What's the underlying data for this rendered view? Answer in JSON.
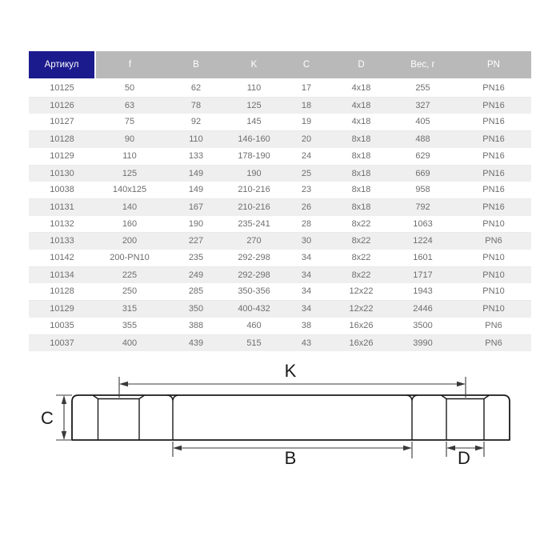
{
  "table": {
    "headers": [
      "Артикул",
      "f",
      "B",
      "K",
      "C",
      "D",
      "Вес, г",
      "PN"
    ],
    "rows": [
      [
        "10125",
        "50",
        "62",
        "110",
        "17",
        "4x18",
        "255",
        "PN16"
      ],
      [
        "10126",
        "63",
        "78",
        "125",
        "18",
        "4x18",
        "327",
        "PN16"
      ],
      [
        "10127",
        "75",
        "92",
        "145",
        "19",
        "4x18",
        "405",
        "PN16"
      ],
      [
        "10128",
        "90",
        "110",
        "146-160",
        "20",
        "8x18",
        "488",
        "PN16"
      ],
      [
        "10129",
        "110",
        "133",
        "178-190",
        "24",
        "8x18",
        "629",
        "PN16"
      ],
      [
        "10130",
        "125",
        "149",
        "190",
        "25",
        "8x18",
        "669",
        "PN16"
      ],
      [
        "10038",
        "140x125",
        "149",
        "210-216",
        "23",
        "8x18",
        "958",
        "PN16"
      ],
      [
        "10131",
        "140",
        "167",
        "210-216",
        "26",
        "8x18",
        "792",
        "PN16"
      ],
      [
        "10132",
        "160",
        "190",
        "235-241",
        "28",
        "8x22",
        "1063",
        "PN10"
      ],
      [
        "10133",
        "200",
        "227",
        "270",
        "30",
        "8x22",
        "1224",
        "PN6"
      ],
      [
        "10142",
        "200-PN10",
        "235",
        "292-298",
        "34",
        "8x22",
        "1601",
        "PN10"
      ],
      [
        "10134",
        "225",
        "249",
        "292-298",
        "34",
        "8x22",
        "1717",
        "PN10"
      ],
      [
        "10128",
        "250",
        "285",
        "350-356",
        "34",
        "12x22",
        "1943",
        "PN10"
      ],
      [
        "10129",
        "315",
        "350",
        "400-432",
        "34",
        "12x22",
        "2446",
        "PN10"
      ],
      [
        "10035",
        "355",
        "388",
        "460",
        "38",
        "16x26",
        "3500",
        "PN6"
      ],
      [
        "10037",
        "400",
        "439",
        "515",
        "43",
        "16x26",
        "3990",
        "PN6"
      ]
    ]
  },
  "diagram": {
    "labels": {
      "k": "K",
      "c": "C",
      "b": "B",
      "d": "D"
    }
  },
  "colors": {
    "header_accent": "#1b1b8e",
    "header_gray": "#b9b9b9",
    "row_stripe": "#efefef",
    "cell_text": "#6e6e70",
    "line": "#1a1a1a"
  }
}
